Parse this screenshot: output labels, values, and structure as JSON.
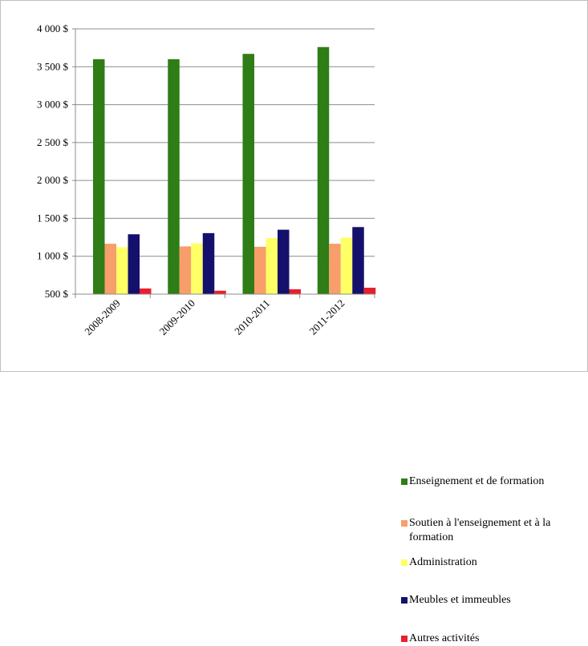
{
  "chart_data": {
    "type": "bar",
    "categories": [
      "2008-2009",
      "2009-2010",
      "2010-2011",
      "2011-2012"
    ],
    "series": [
      {
        "name": "Enseignement et de formation",
        "color": "#2e7d16",
        "values": [
          3600,
          3600,
          3670,
          3760
        ]
      },
      {
        "name": "Soutien à l'enseignement et à la formation",
        "color": "#f79e6b",
        "values": [
          1165,
          1130,
          1125,
          1165
        ]
      },
      {
        "name": "Administration",
        "color": "#ffff66",
        "values": [
          1120,
          1170,
          1240,
          1245
        ]
      },
      {
        "name": "Meubles et immeubles",
        "color": "#14106b",
        "values": [
          1290,
          1305,
          1350,
          1385
        ]
      },
      {
        "name": "Autres activités",
        "color": "#e8202e",
        "values": [
          575,
          545,
          565,
          585
        ]
      }
    ],
    "y_ticks": [
      "4 000  $",
      "3 500  $",
      "3 000  $",
      "2 500  $",
      "2 000  $",
      "1 500  $",
      "1 000  $",
      "500  $"
    ],
    "ylim": [
      500,
      4000
    ],
    "grid": true,
    "legend_position": "right"
  }
}
